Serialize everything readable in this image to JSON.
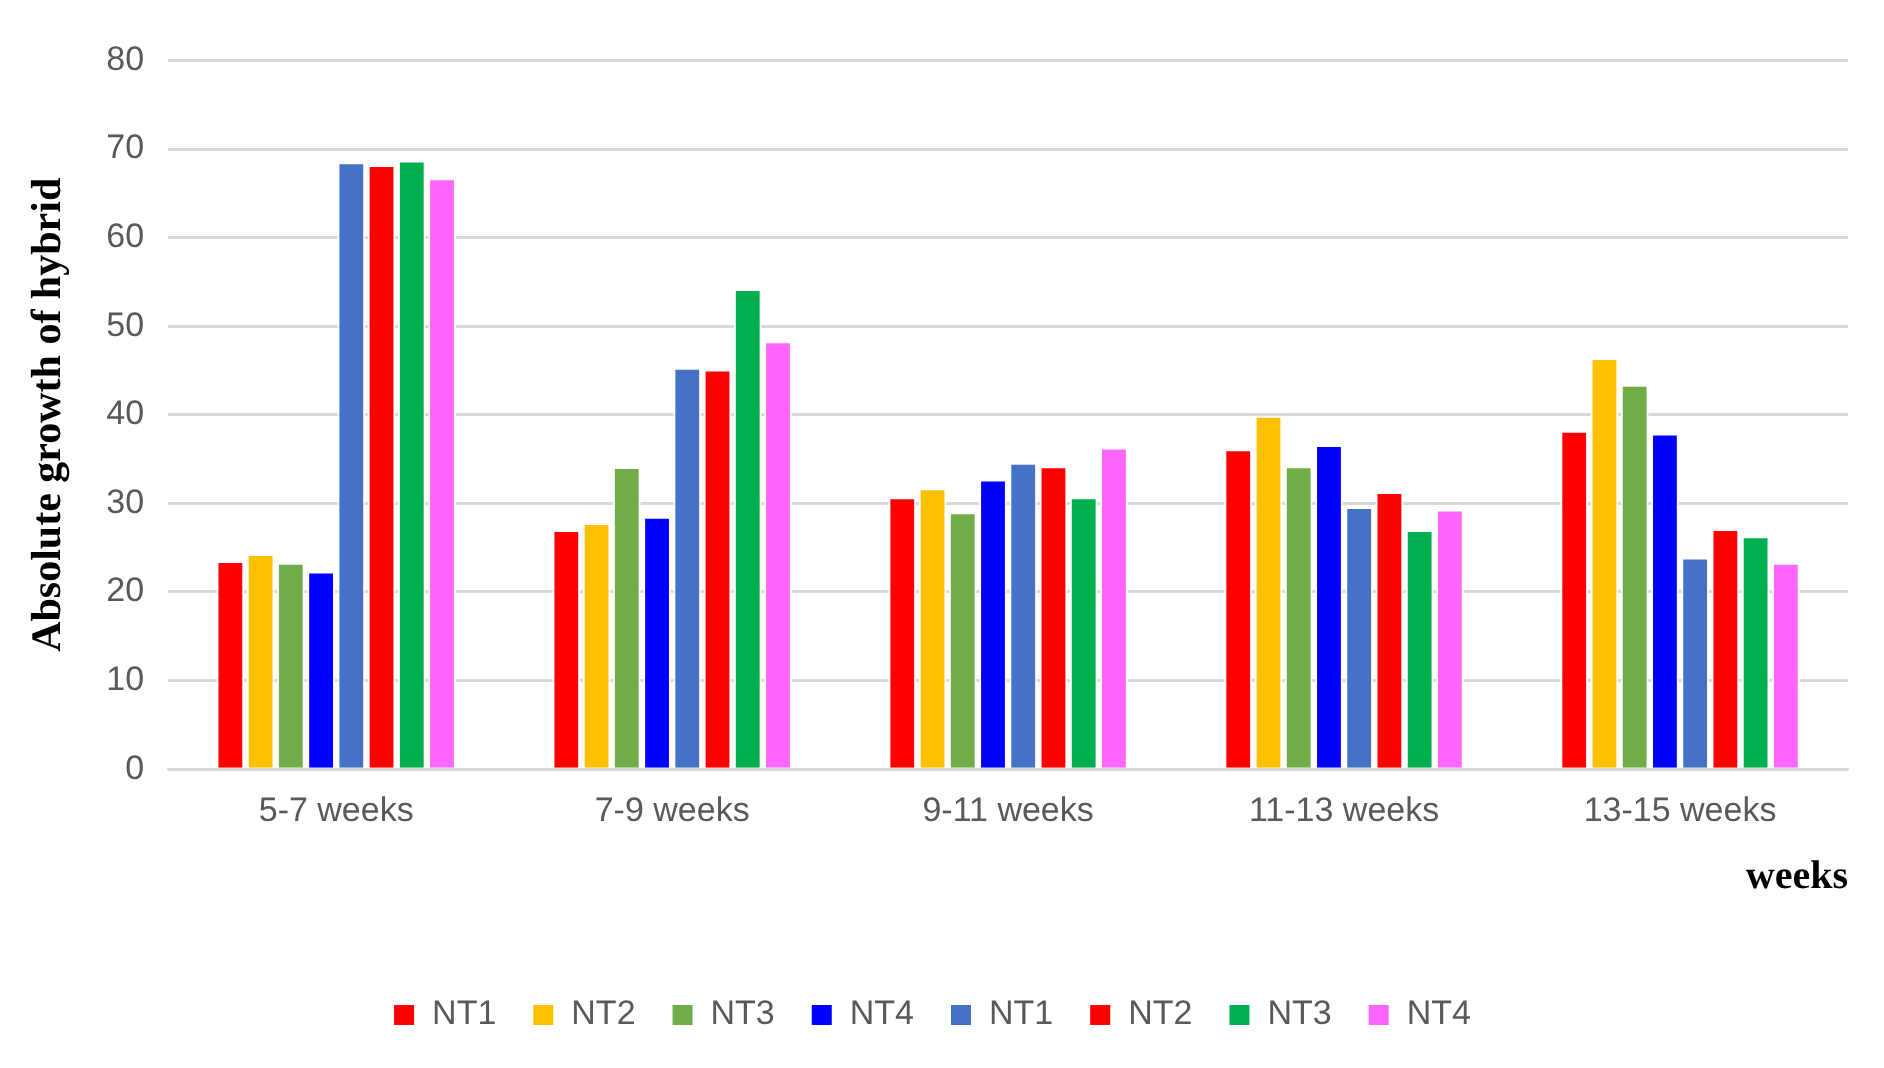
{
  "chart_data": {
    "type": "bar",
    "ylabel": "Absolute growth of hybrid",
    "xlabel": "weeks",
    "categories": [
      "5-7 weeks",
      "7-9 weeks",
      "9-11 weeks",
      "11-13 weeks",
      "13-15 weeks"
    ],
    "series": [
      {
        "name": "NT1",
        "color": "#ff0000",
        "values": [
          23.5,
          27,
          30.7,
          36.1,
          38.2
        ]
      },
      {
        "name": "NT2",
        "color": "#ffc000",
        "values": [
          24.3,
          27.8,
          31.7,
          39.9,
          46.4
        ]
      },
      {
        "name": "NT3",
        "color": "#70ad47",
        "values": [
          23.3,
          34.1,
          29,
          34.2,
          43.4
        ]
      },
      {
        "name": "NT4",
        "color": "#0000ff",
        "values": [
          22.3,
          28.5,
          32.7,
          36.6,
          37.9
        ]
      },
      {
        "name": "NT1",
        "color": "#4472c4",
        "values": [
          68.5,
          45.3,
          34.6,
          29.6,
          23.9
        ]
      },
      {
        "name": "NT2",
        "color": "#ff0000",
        "values": [
          68.2,
          45.1,
          34.2,
          31.3,
          27.1
        ]
      },
      {
        "name": "NT3",
        "color": "#00b050",
        "values": [
          68.7,
          54.2,
          30.7,
          27,
          26.3
        ]
      },
      {
        "name": "NT4",
        "color": "#ff66ff",
        "values": [
          66.7,
          48.3,
          36.3,
          29.3,
          23.3
        ]
      }
    ],
    "ylim": [
      0,
      80
    ],
    "yticks": [
      0,
      10,
      20,
      30,
      40,
      50,
      60,
      70,
      80
    ],
    "grid": "y",
    "legend": "bottom"
  }
}
